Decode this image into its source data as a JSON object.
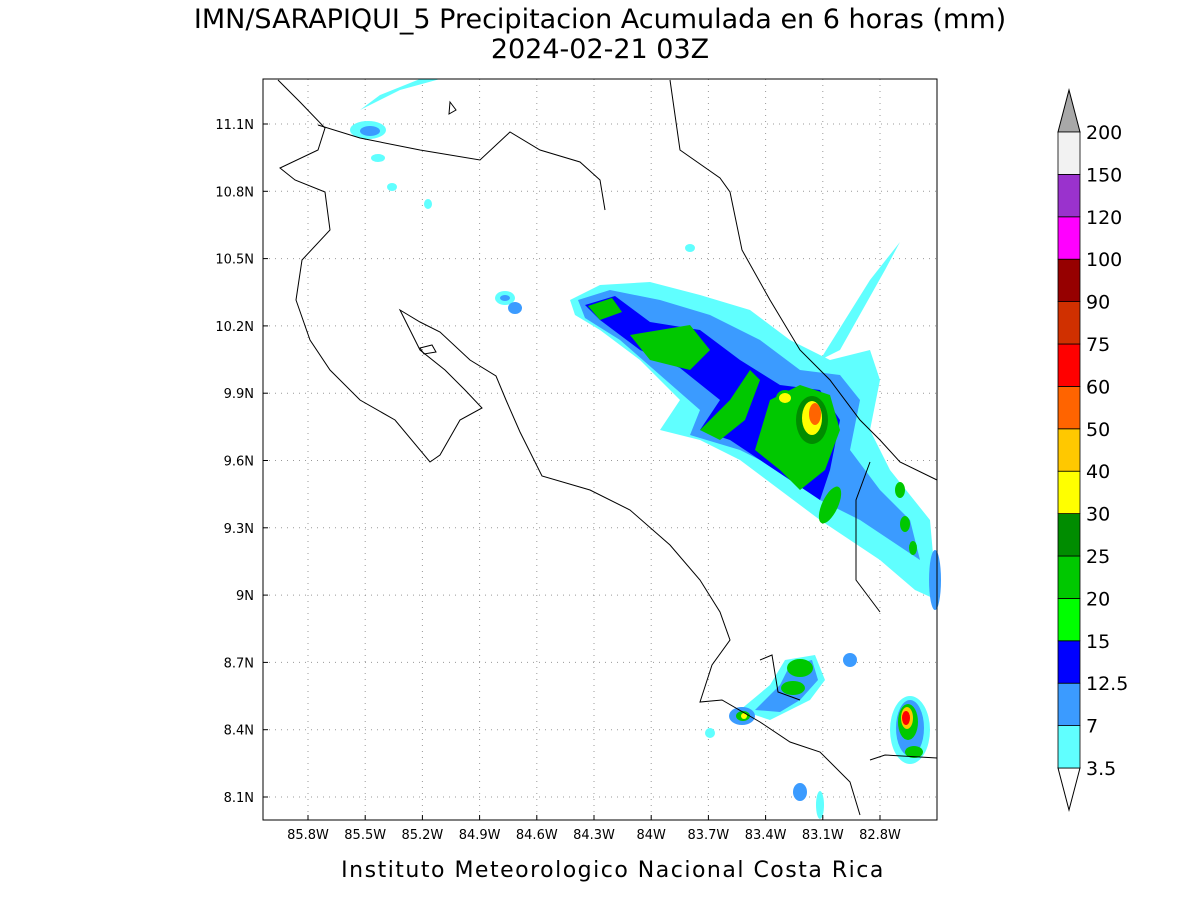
{
  "title": "IMN/SARAPIQUI_5 Precipitacion Acumulada en 6 horas (mm)",
  "subtitle": "2024-02-21 03Z",
  "xticks": [
    "85.8W",
    "85.5W",
    "85.2W",
    "84.9W",
    "84.6W",
    "84.3W",
    "84W",
    "83.7W",
    "83.4W",
    "83.1W",
    "82.8W"
  ],
  "yticks": [
    "11.1N",
    "10.8N",
    "10.5N",
    "10.2N",
    "9.9N",
    "9.6N",
    "9.3N",
    "9N",
    "8.7N",
    "8.4N",
    "8.1N"
  ],
  "colorbar": {
    "levels": [
      "3.5",
      "7",
      "12.5",
      "15",
      "20",
      "25",
      "30",
      "40",
      "50",
      "60",
      "75",
      "90",
      "100",
      "120",
      "150",
      "200"
    ],
    "colors": [
      "#60ffff",
      "#3b9bff",
      "#0000ff",
      "#00ff00",
      "#00c800",
      "#008c00",
      "#ffff00",
      "#ffc800",
      "#ff6400",
      "#ff0000",
      "#d03000",
      "#960000",
      "#ff00ff",
      "#9a32cd",
      "#f2f2f2"
    ],
    "under_color": "#ffffff",
    "over_color": "#a8a8a8"
  },
  "footer": "Instituto Meteorologico Nacional Costa Rica"
}
